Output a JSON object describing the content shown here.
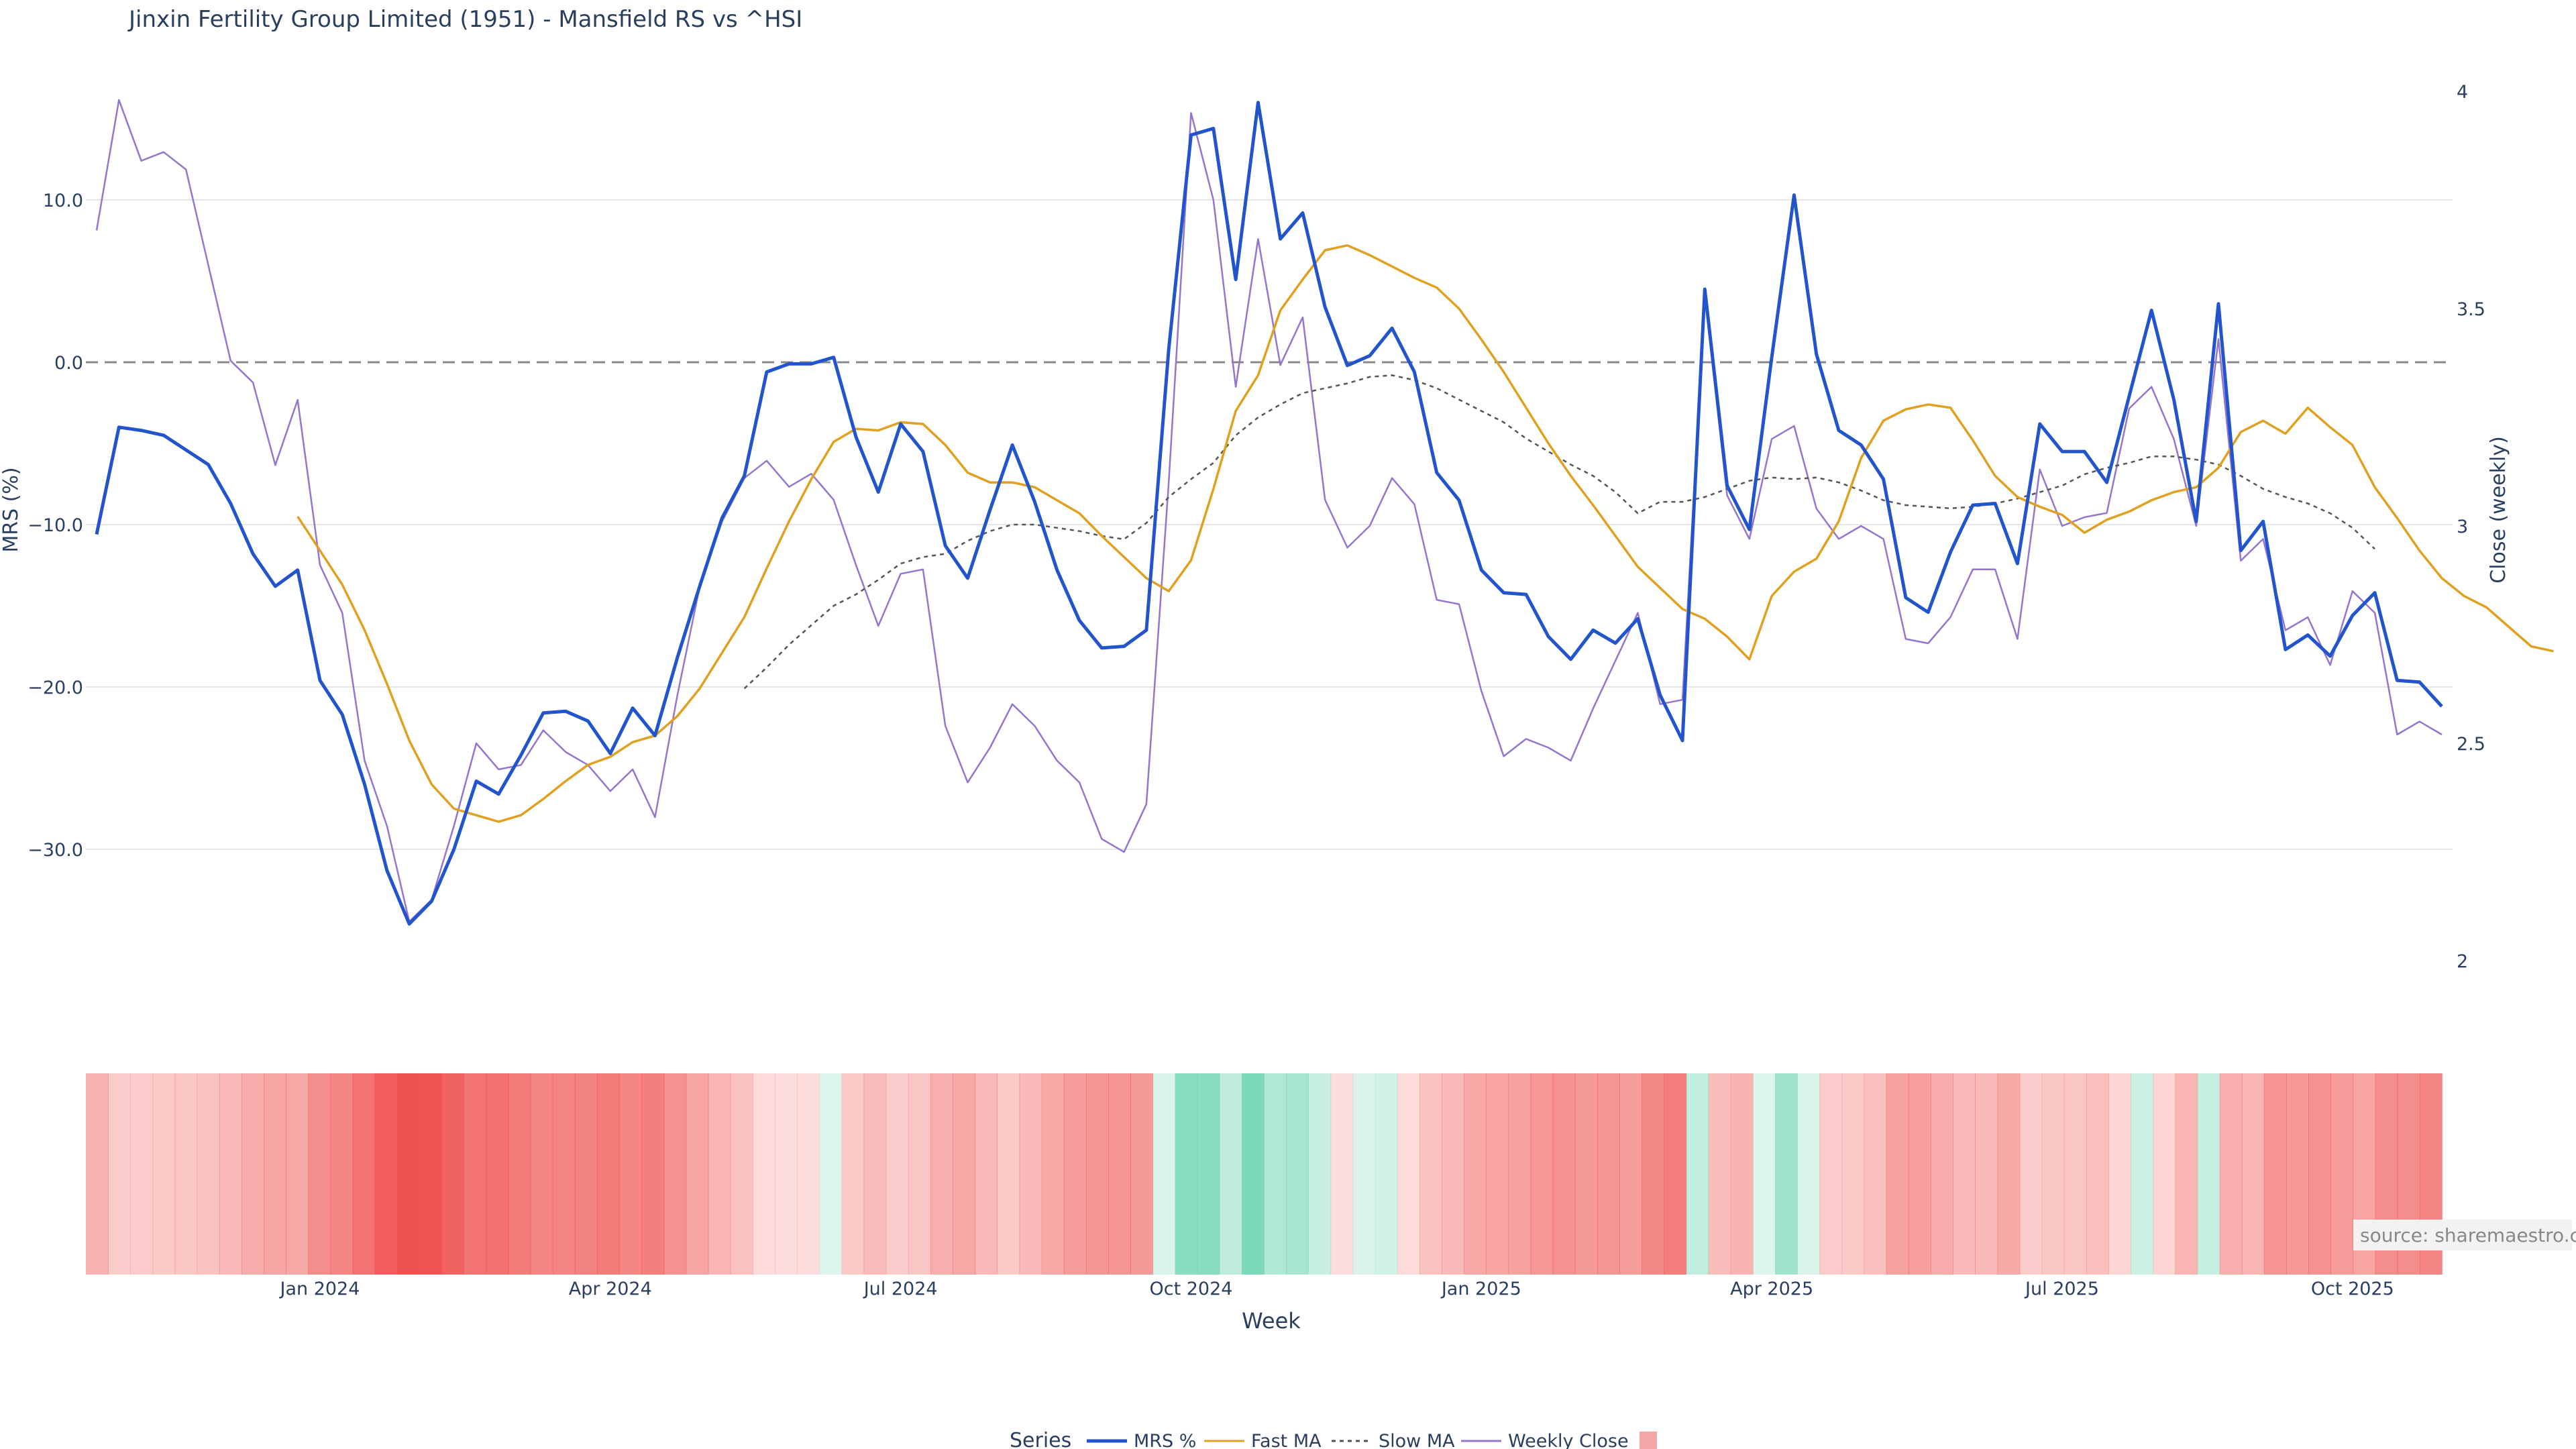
{
  "chart_data": {
    "type": "line",
    "title": "Jinxin Fertility Group Limited (1951) - Mansfield RS vs ^HSI",
    "xlabel": "Week",
    "ylabel_left": "MRS (%)",
    "ylabel_right": "Close (weekly)",
    "left_ticks": [
      "10.0",
      "0.0",
      "−10.0",
      "−20.0",
      "−30.0"
    ],
    "left_tick_values": [
      10,
      0,
      -10,
      -20,
      -30
    ],
    "ylim_left": [
      -37.2,
      16.8
    ],
    "right_ticks": [
      "4",
      "3.5",
      "3",
      "2.5",
      "2"
    ],
    "right_tick_values": [
      4,
      3.5,
      3,
      2.5,
      2
    ],
    "ylim_right": [
      1.87,
      4.1
    ],
    "x_ticks": [
      "Jan 2024",
      "Apr 2024",
      "Jul 2024",
      "Oct 2024",
      "Jan 2025",
      "Apr 2025",
      "Jul 2025",
      "Oct 2025"
    ],
    "x_tick_index": [
      10,
      23,
      36,
      49,
      62,
      75,
      88,
      101
    ],
    "n_weeks": 106,
    "reference_line": 0,
    "series": [
      {
        "name": "MRS %",
        "color": "#2255cc",
        "style": "solid",
        "offset": 0,
        "axis": "left",
        "values": [
          -10.6,
          -4.0,
          -4.2,
          -4.5,
          -5.4,
          -6.3,
          -8.7,
          -11.8,
          -13.8,
          -12.8,
          -19.6,
          -21.7,
          -26.0,
          -31.3,
          -34.6,
          -33.2,
          -30.0,
          -25.8,
          -26.6,
          -24.2,
          -21.6,
          -21.5,
          -22.1,
          -24.1,
          -21.3,
          -23.0,
          -18.2,
          -13.8,
          -9.6,
          -7.0,
          -0.6,
          -0.1,
          -0.1,
          0.3,
          -4.6,
          -8.0,
          -3.8,
          -5.5,
          -11.3,
          -13.3,
          -9.1,
          -5.1,
          -8.6,
          -12.8,
          -15.9,
          -17.6,
          -17.5,
          -16.5,
          0.8,
          14.0,
          14.4,
          5.1,
          16.0,
          7.6,
          9.2,
          3.4,
          -0.2,
          0.4,
          2.1,
          -0.6,
          -6.8,
          -8.5,
          -12.8,
          -14.2,
          -14.3,
          -16.9,
          -18.3,
          -16.5,
          -17.3,
          -15.8,
          -20.5,
          -23.3,
          4.5,
          -7.6,
          -10.3,
          0.3,
          10.3,
          0.5,
          -4.2,
          -5.1,
          -7.2,
          -14.5,
          -15.4,
          -11.7,
          -8.8,
          -8.7,
          -12.4,
          -3.8,
          -5.5,
          -5.5,
          -7.4,
          -2.1,
          3.2,
          -2.3,
          -9.8,
          3.6,
          -11.6,
          -9.8,
          -17.7,
          -16.8,
          -18.1,
          -15.6,
          -14.2,
          -19.6,
          -19.7,
          -21.2
        ]
      },
      {
        "name": "Fast MA",
        "color": "#e0a020",
        "style": "solid",
        "offset": 9,
        "axis": "left",
        "values": [
          -9.5,
          -11.6,
          -13.7,
          -16.5,
          -19.8,
          -23.3,
          -26.0,
          -27.5,
          -27.9,
          -28.3,
          -27.9,
          -26.9,
          -25.8,
          -24.8,
          -24.3,
          -23.4,
          -23.0,
          -21.8,
          -20.1,
          -17.9,
          -15.7,
          -12.7,
          -9.8,
          -7.2,
          -4.9,
          -4.1,
          -4.2,
          -3.7,
          -3.8,
          -5.1,
          -6.8,
          -7.4,
          -7.4,
          -7.7,
          -8.5,
          -9.3,
          -10.7,
          -12.0,
          -13.3,
          -14.1,
          -12.2,
          -7.8,
          -3.0,
          -0.8,
          3.2,
          5.1,
          6.9,
          7.2,
          6.6,
          5.9,
          5.2,
          4.6,
          3.3,
          1.4,
          -0.6,
          -2.8,
          -5.0,
          -7.0,
          -8.8,
          -10.7,
          -12.6,
          -13.9,
          -15.2,
          -15.8,
          -16.9,
          -18.3,
          -14.4,
          -12.9,
          -12.1,
          -9.8,
          -5.9,
          -3.6,
          -2.9,
          -2.6,
          -2.8,
          -4.8,
          -7.0,
          -8.3,
          -8.9,
          -9.4,
          -10.5,
          -9.7,
          -9.2,
          -8.5,
          -8.0,
          -7.7,
          -6.5,
          -4.3,
          -3.6,
          -4.4,
          -2.8,
          -4.0,
          -5.1,
          -7.7,
          -9.6,
          -11.6,
          -13.3,
          -14.4,
          -15.1,
          -16.3,
          -17.5,
          -17.8
        ]
      },
      {
        "name": "Slow MA",
        "color": "#555555",
        "style": "dotted",
        "offset": 29,
        "axis": "left",
        "values": [
          -20.1,
          -18.8,
          -17.4,
          -16.2,
          -15.0,
          -14.3,
          -13.4,
          -12.4,
          -12.0,
          -11.8,
          -11.0,
          -10.4,
          -10.0,
          -10.0,
          -10.2,
          -10.4,
          -10.7,
          -10.9,
          -9.9,
          -8.3,
          -7.2,
          -6.2,
          -4.5,
          -3.4,
          -2.6,
          -1.9,
          -1.6,
          -1.3,
          -0.9,
          -0.8,
          -1.1,
          -1.6,
          -2.3,
          -3.0,
          -3.7,
          -4.7,
          -5.5,
          -6.3,
          -7.0,
          -8.0,
          -9.3,
          -8.6,
          -8.6,
          -8.3,
          -7.8,
          -7.3,
          -7.1,
          -7.2,
          -7.1,
          -7.4,
          -7.9,
          -8.5,
          -8.8,
          -8.9,
          -9.0,
          -8.9,
          -8.7,
          -8.4,
          -8.0,
          -7.6,
          -6.9,
          -6.5,
          -6.2,
          -5.8,
          -5.8,
          -6.0,
          -6.3,
          -7.0,
          -7.8,
          -8.3,
          -8.7,
          -9.3,
          -10.2,
          -11.5
        ]
      },
      {
        "name": "Weekly Close",
        "color": "#9575cd",
        "style": "solid",
        "offset": 0,
        "axis": "right",
        "values": [
          3.68,
          3.98,
          3.84,
          3.86,
          3.82,
          3.6,
          3.38,
          3.33,
          3.14,
          3.29,
          2.91,
          2.8,
          2.46,
          2.31,
          2.09,
          2.14,
          2.31,
          2.5,
          2.44,
          2.45,
          2.53,
          2.48,
          2.45,
          2.39,
          2.44,
          2.33,
          2.61,
          2.86,
          3.01,
          3.11,
          3.15,
          3.09,
          3.12,
          3.06,
          2.91,
          2.77,
          2.89,
          2.9,
          2.54,
          2.41,
          2.49,
          2.59,
          2.54,
          2.46,
          2.41,
          2.28,
          2.25,
          2.36,
          3.1,
          3.95,
          3.75,
          3.32,
          3.66,
          3.37,
          3.48,
          3.06,
          2.95,
          3.0,
          3.11,
          3.05,
          2.83,
          2.82,
          2.62,
          2.47,
          2.51,
          2.49,
          2.46,
          2.58,
          2.69,
          2.8,
          2.59,
          2.6,
          3.53,
          3.07,
          2.97,
          3.2,
          3.23,
          3.04,
          2.97,
          3.0,
          2.97,
          2.74,
          2.73,
          2.79,
          2.9,
          2.9,
          2.74,
          3.13,
          3.0,
          3.02,
          3.03,
          3.27,
          3.32,
          3.2,
          3.0,
          3.43,
          2.92,
          2.97,
          2.76,
          2.79,
          2.68,
          2.85,
          2.8,
          2.52,
          2.55,
          2.52
        ]
      }
    ],
    "heatstrip": {
      "description": "MRS % colour strip (red negative, green positive)",
      "negative_color": "#ef5350",
      "positive_color": "#76d7b8"
    },
    "legend": {
      "title": "Series",
      "placement": "bottom-center",
      "items": [
        "MRS %",
        "Fast MA",
        "Slow MA",
        "Weekly Close",
        ""
      ]
    },
    "source_label": "source: sharemaestro.com"
  }
}
